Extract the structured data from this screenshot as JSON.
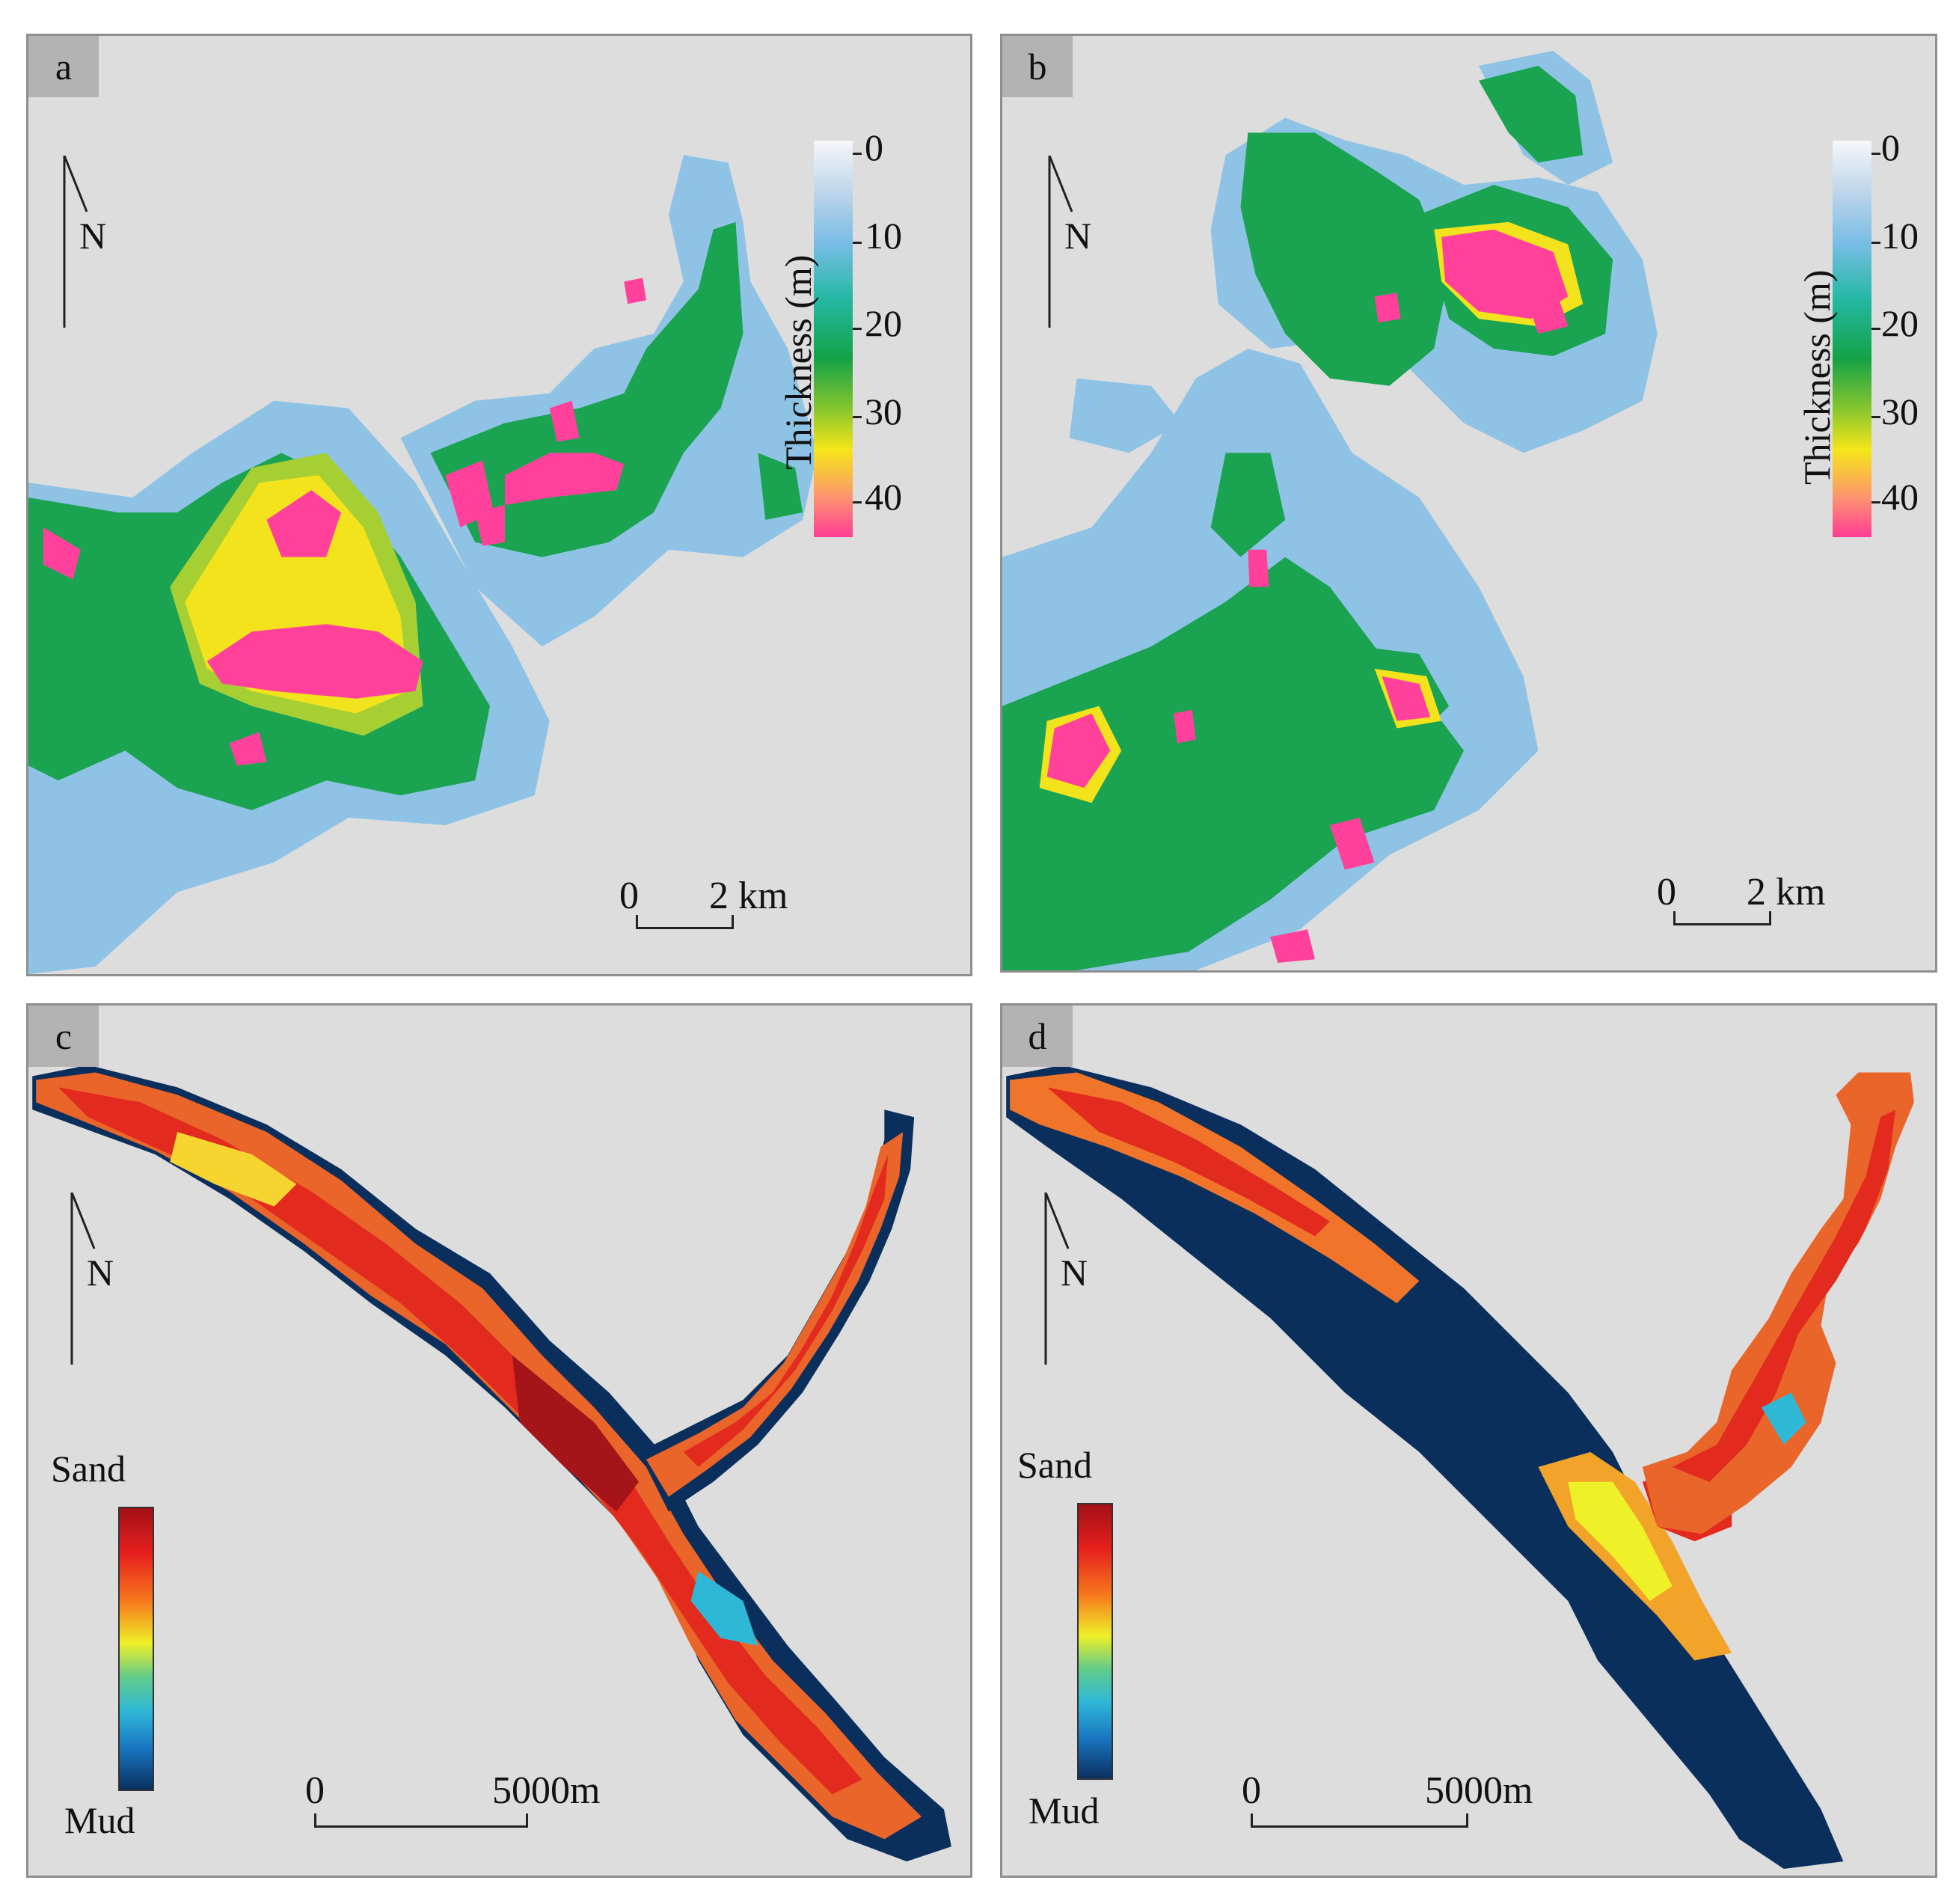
{
  "panels": [
    {
      "id": "a",
      "label": "a",
      "north": "N",
      "legend_title": "Thickness (m)",
      "legend_ticks": [
        "0",
        "10",
        "20",
        "30",
        "40"
      ],
      "scale_start": "0",
      "scale_end": "2 km"
    },
    {
      "id": "b",
      "label": "b",
      "north": "N",
      "legend_title": "Thickness (m)",
      "legend_ticks": [
        "0",
        "10",
        "20",
        "30",
        "40"
      ],
      "scale_start": "0",
      "scale_end": "2 km"
    },
    {
      "id": "c",
      "label": "c",
      "north": "N",
      "legend_top": "Sand",
      "legend_bottom": "Mud",
      "scale_start": "0",
      "scale_end": "5000m"
    },
    {
      "id": "d",
      "label": "d",
      "north": "N",
      "legend_top": "Sand",
      "legend_bottom": "Mud",
      "scale_start": "0",
      "scale_end": "5000m"
    }
  ],
  "colors": {
    "background": "#dddddd",
    "thickness_ramp": [
      "#f6f7fa",
      "#78bde5",
      "#14a246",
      "#f6e618",
      "#ff3c96"
    ],
    "sand_mud_ramp": [
      "#a31016",
      "#e61f1d",
      "#f7781c",
      "#eef028",
      "#2fb8d6",
      "#0a2f60"
    ]
  }
}
